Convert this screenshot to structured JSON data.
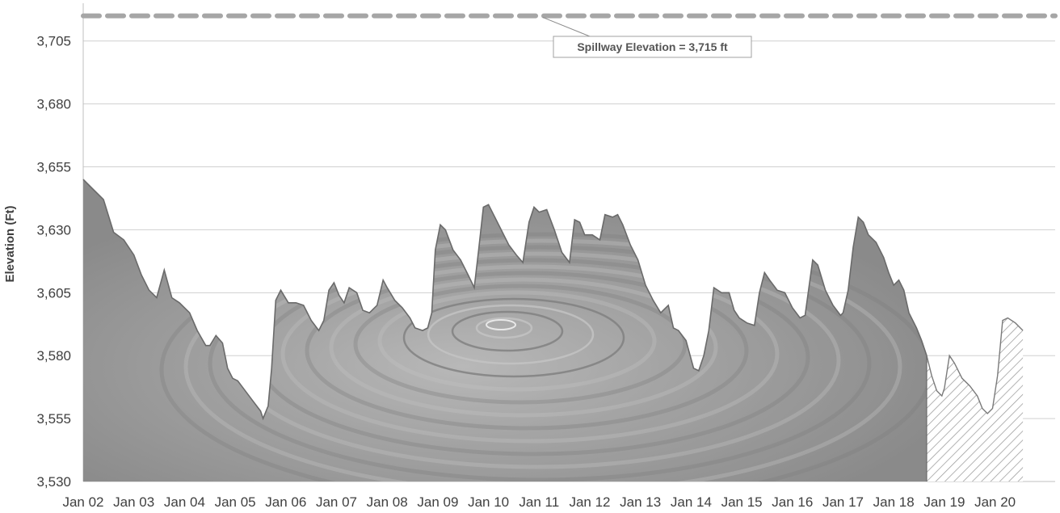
{
  "chart_data": {
    "type": "area",
    "ylabel": "Elevation (Ft)",
    "xlabel": "",
    "ylim": [
      3530,
      3720
    ],
    "yticks": [
      3530,
      3555,
      3580,
      3605,
      3630,
      3655,
      3680,
      3705
    ],
    "ytick_labels": [
      "3,530",
      "3,555",
      "3,580",
      "3,605",
      "3,630",
      "3,655",
      "3,680",
      "3,705"
    ],
    "x_categories": [
      "Jan 02",
      "Jan 03",
      "Jan 04",
      "Jan 05",
      "Jan 06",
      "Jan 07",
      "Jan 08",
      "Jan 09",
      "Jan 10",
      "Jan 11",
      "Jan 12",
      "Jan 13",
      "Jan 14",
      "Jan 15",
      "Jan 16",
      "Jan 17",
      "Jan 18",
      "Jan 19",
      "Jan 20"
    ],
    "grid": "horizontal",
    "reference_line": {
      "value": 3715,
      "label": "Spillway Elevation = 3,715 ft",
      "color": "#a6a6a6",
      "style": "dashed"
    },
    "series": [
      {
        "style": "solid-shaded",
        "color": "#8c8c8c",
        "points": [
          [
            0.0,
            3650
          ],
          [
            0.15,
            3647
          ],
          [
            0.4,
            3642
          ],
          [
            0.6,
            3629
          ],
          [
            0.8,
            3626
          ],
          [
            1.0,
            3620
          ],
          [
            1.15,
            3612
          ],
          [
            1.3,
            3606
          ],
          [
            1.45,
            3603
          ],
          [
            1.6,
            3614
          ],
          [
            1.75,
            3603
          ],
          [
            1.9,
            3601
          ],
          [
            2.1,
            3597
          ],
          [
            2.25,
            3590
          ],
          [
            2.42,
            3584
          ],
          [
            2.5,
            3584
          ],
          [
            2.62,
            3588
          ],
          [
            2.75,
            3585
          ],
          [
            2.85,
            3575
          ],
          [
            2.95,
            3571
          ],
          [
            3.05,
            3570
          ],
          [
            3.2,
            3566
          ],
          [
            3.35,
            3562
          ],
          [
            3.5,
            3558
          ],
          [
            3.55,
            3555
          ],
          [
            3.65,
            3560
          ],
          [
            3.72,
            3575
          ],
          [
            3.8,
            3602
          ],
          [
            3.9,
            3606
          ],
          [
            4.05,
            3601
          ],
          [
            4.2,
            3601
          ],
          [
            4.35,
            3600
          ],
          [
            4.5,
            3594
          ],
          [
            4.65,
            3590
          ],
          [
            4.75,
            3594
          ],
          [
            4.85,
            3606
          ],
          [
            4.95,
            3609
          ],
          [
            5.05,
            3604
          ],
          [
            5.15,
            3601
          ],
          [
            5.25,
            3607
          ],
          [
            5.4,
            3605
          ],
          [
            5.52,
            3598
          ],
          [
            5.65,
            3597
          ],
          [
            5.8,
            3600
          ],
          [
            5.92,
            3610
          ],
          [
            6.0,
            3607
          ],
          [
            6.15,
            3602
          ],
          [
            6.3,
            3599
          ],
          [
            6.45,
            3595
          ],
          [
            6.55,
            3591
          ],
          [
            6.7,
            3590
          ],
          [
            6.8,
            3591
          ],
          [
            6.88,
            3597
          ],
          [
            6.95,
            3622
          ],
          [
            7.05,
            3632
          ],
          [
            7.15,
            3630
          ],
          [
            7.3,
            3622
          ],
          [
            7.45,
            3618
          ],
          [
            7.6,
            3612
          ],
          [
            7.72,
            3607
          ],
          [
            7.8,
            3621
          ],
          [
            7.9,
            3639
          ],
          [
            8.0,
            3640
          ],
          [
            8.1,
            3636
          ],
          [
            8.25,
            3630
          ],
          [
            8.4,
            3624
          ],
          [
            8.55,
            3620
          ],
          [
            8.68,
            3617
          ],
          [
            8.8,
            3633
          ],
          [
            8.9,
            3639
          ],
          [
            9.0,
            3637
          ],
          [
            9.15,
            3638
          ],
          [
            9.3,
            3630
          ],
          [
            9.45,
            3621
          ],
          [
            9.6,
            3617
          ],
          [
            9.7,
            3634
          ],
          [
            9.8,
            3633
          ],
          [
            9.9,
            3628
          ],
          [
            10.05,
            3628
          ],
          [
            10.2,
            3626
          ],
          [
            10.3,
            3636
          ],
          [
            10.45,
            3635
          ],
          [
            10.55,
            3636
          ],
          [
            10.65,
            3632
          ],
          [
            10.8,
            3624
          ],
          [
            10.95,
            3618
          ],
          [
            11.1,
            3608
          ],
          [
            11.25,
            3602
          ],
          [
            11.4,
            3597
          ],
          [
            11.55,
            3600
          ],
          [
            11.65,
            3591
          ],
          [
            11.75,
            3590
          ],
          [
            11.9,
            3586
          ],
          [
            12.05,
            3575
          ],
          [
            12.15,
            3574
          ],
          [
            12.25,
            3580
          ],
          [
            12.35,
            3590
          ],
          [
            12.45,
            3607
          ],
          [
            12.6,
            3605
          ],
          [
            12.75,
            3605
          ],
          [
            12.85,
            3598
          ],
          [
            12.95,
            3595
          ],
          [
            13.1,
            3593
          ],
          [
            13.25,
            3592
          ],
          [
            13.35,
            3605
          ],
          [
            13.45,
            3613
          ],
          [
            13.55,
            3610
          ],
          [
            13.7,
            3606
          ],
          [
            13.85,
            3605
          ],
          [
            14.0,
            3599
          ],
          [
            14.15,
            3595
          ],
          [
            14.25,
            3596
          ],
          [
            14.4,
            3618
          ],
          [
            14.5,
            3616
          ],
          [
            14.65,
            3606
          ],
          [
            14.8,
            3600
          ],
          [
            14.95,
            3596
          ],
          [
            15.0,
            3597
          ],
          [
            15.1,
            3606
          ],
          [
            15.2,
            3623
          ],
          [
            15.3,
            3635
          ],
          [
            15.4,
            3633
          ],
          [
            15.5,
            3628
          ],
          [
            15.65,
            3625
          ],
          [
            15.8,
            3619
          ],
          [
            15.9,
            3613
          ],
          [
            16.0,
            3608
          ],
          [
            16.1,
            3610
          ],
          [
            16.2,
            3606
          ],
          [
            16.3,
            3597
          ],
          [
            16.45,
            3591
          ],
          [
            16.55,
            3586
          ],
          [
            16.65,
            3580
          ]
        ]
      },
      {
        "style": "hatched",
        "color": "#8c8c8c",
        "points": [
          [
            16.65,
            3580
          ],
          [
            16.75,
            3572
          ],
          [
            16.85,
            3566
          ],
          [
            16.95,
            3564
          ],
          [
            17.0,
            3567
          ],
          [
            17.1,
            3580
          ],
          [
            17.2,
            3577
          ],
          [
            17.35,
            3571
          ],
          [
            17.5,
            3568
          ],
          [
            17.65,
            3564
          ],
          [
            17.75,
            3559
          ],
          [
            17.85,
            3557
          ],
          [
            17.95,
            3559
          ],
          [
            18.05,
            3572
          ],
          [
            18.15,
            3594
          ],
          [
            18.25,
            3595
          ],
          [
            18.4,
            3593
          ],
          [
            18.55,
            3590
          ]
        ]
      }
    ]
  }
}
